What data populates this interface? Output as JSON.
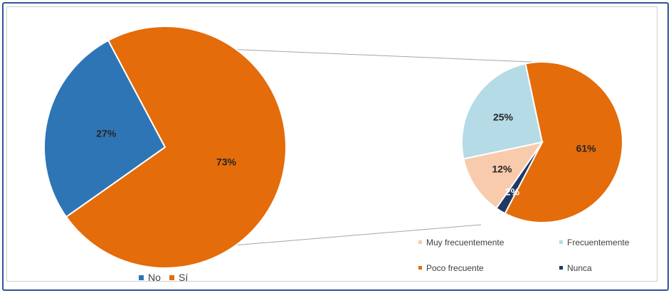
{
  "chart_data": [
    {
      "type": "pie",
      "categories": [
        "No",
        "Sí"
      ],
      "values": [
        27,
        73
      ],
      "labels": [
        "27%",
        "73%"
      ],
      "colors": [
        "#2e75b6",
        "#e46c0a"
      ],
      "legend": {
        "position": "bottom",
        "entries": [
          "No",
          "Sí"
        ]
      }
    },
    {
      "type": "pie",
      "categories": [
        "Frecuentemente",
        "Poco frecuente",
        "Nunca",
        "Muy frecuentemente"
      ],
      "values": [
        25,
        61,
        2,
        12
      ],
      "labels": [
        "25%",
        "61%",
        "2%",
        "12%"
      ],
      "colors": [
        "#b4dbe6",
        "#e46c0a",
        "#1f3864",
        "#f8cbad"
      ],
      "legend": {
        "position": "bottom-right",
        "entries": [
          "Muy frecuentemente",
          "Frecuentemente",
          "Poco frecuente",
          "Nunca"
        ]
      }
    }
  ]
}
